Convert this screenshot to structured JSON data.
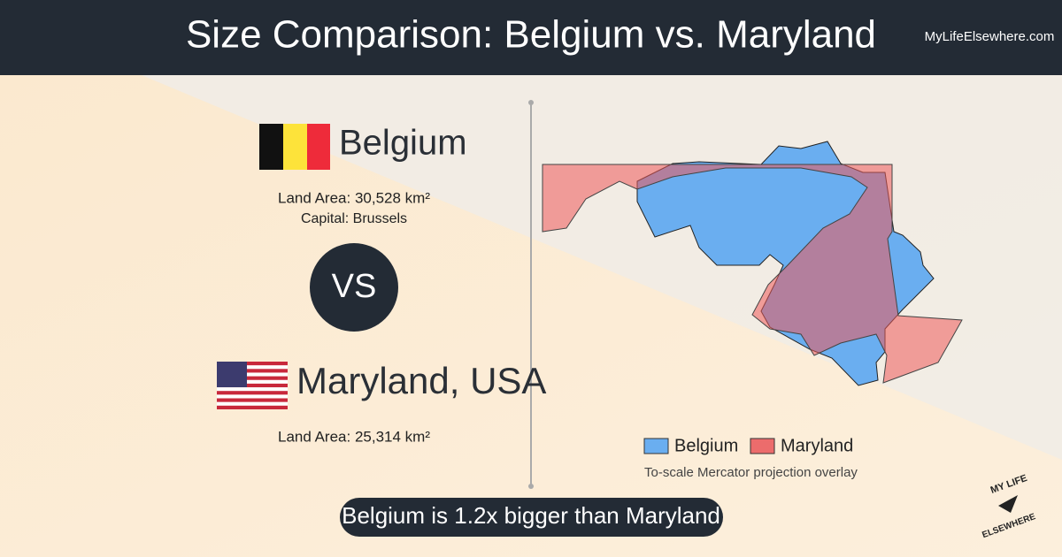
{
  "header": {
    "title": "Size Comparison: Belgium vs. Maryland",
    "site": "MyLifeElsewhere.com"
  },
  "left": {
    "country1": {
      "name": "Belgium",
      "area": "Land Area: 30,528 km²",
      "capital": "Capital: Brussels"
    },
    "vs": "VS",
    "country2": {
      "name": "Maryland, USA",
      "area": "Land Area: 25,314 km²"
    }
  },
  "map": {
    "legend": [
      "Belgium",
      "Maryland"
    ],
    "caption": "To-scale Mercator projection overlay"
  },
  "banner": "Belgium is 1.2x bigger than Maryland",
  "logo": {
    "top": "MY LIFE",
    "bottom": "ELSEWHERE"
  }
}
